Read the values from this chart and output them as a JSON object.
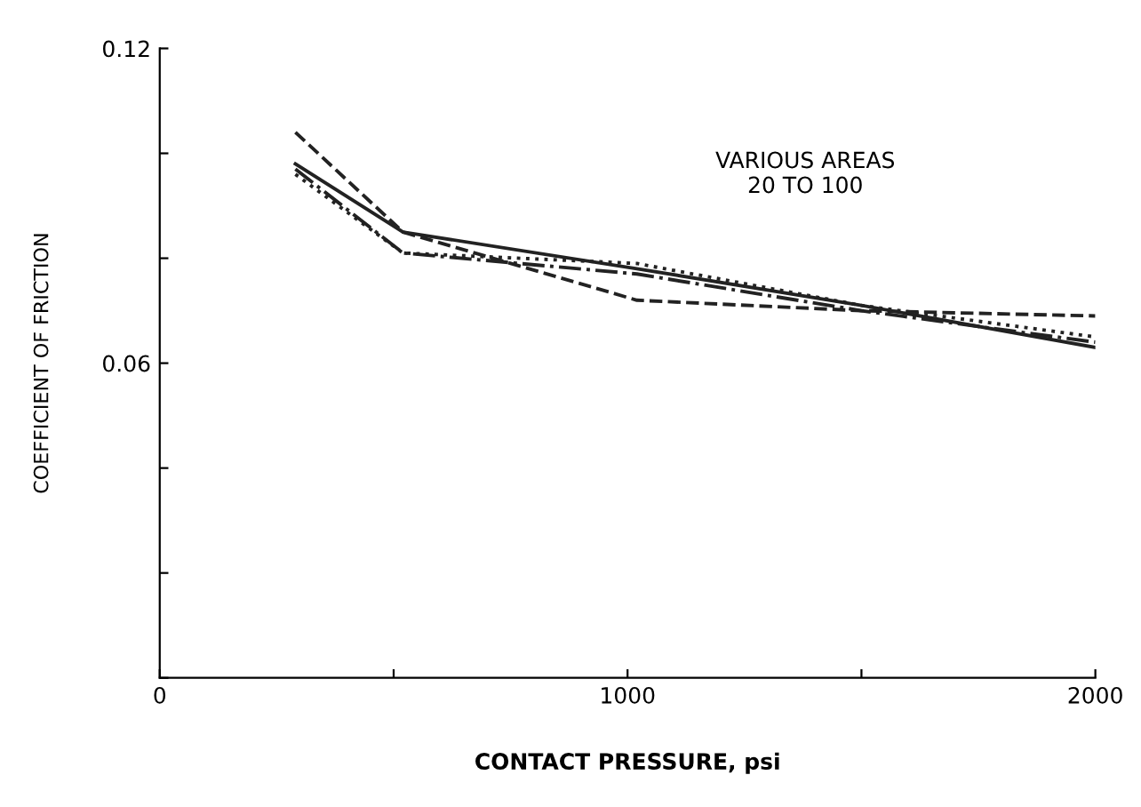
{
  "chart_data": {
    "type": "line",
    "xlabel": "CONTACT PRESSURE, psi",
    "ylabel": "COEFFICIENT OF FRICTION",
    "annotations": [
      "VARIOUS AREAS\n20 TO 100"
    ],
    "x": [
      290,
      520,
      1020,
      1500,
      2000
    ],
    "series": [
      {
        "color": "#222222",
        "line_style": "solid",
        "values": [
          0.098,
          0.085,
          0.078,
          0.071,
          0.063
        ]
      },
      {
        "color": "#222222",
        "line_style": "dashed",
        "values": [
          0.104,
          0.085,
          0.072,
          0.07,
          0.069
        ]
      },
      {
        "color": "#222222",
        "line_style": "dashdot",
        "values": [
          0.097,
          0.081,
          0.077,
          0.07,
          0.064
        ]
      },
      {
        "color": "#222222",
        "line_style": "dotted",
        "values": [
          0.096,
          0.081,
          0.079,
          0.071,
          0.065
        ]
      }
    ],
    "xlim": [
      0,
      2000
    ],
    "ylim": [
      0,
      0.12
    ],
    "xticks": [
      0,
      {
        "value": 500,
        "label": null
      },
      1000,
      {
        "value": 1500,
        "label": null
      },
      2000
    ],
    "yticks": [
      {
        "value": 0,
        "label": null
      },
      {
        "value": 0.02,
        "label": null
      },
      {
        "value": 0.04,
        "label": null
      },
      0.06,
      {
        "value": 0.08,
        "label": null
      },
      {
        "value": 0.1,
        "label": null
      },
      0.12
    ],
    "grid": false,
    "legend": false,
    "marker": "none"
  }
}
